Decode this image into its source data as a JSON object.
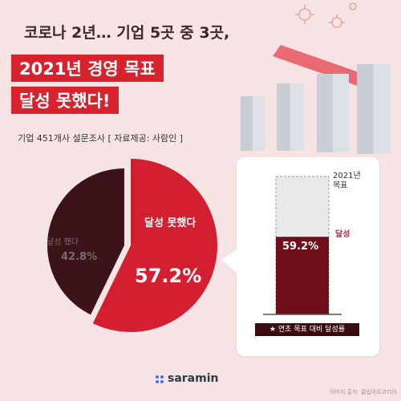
{
  "headline": {
    "line1": "코로나 2년… 기업 5곳 중 3곳,",
    "line2": "2021년 경영 목표",
    "line3": "달성 못했다!"
  },
  "survey_note": "기업 451개사 설문조사 [ 자료제공: 사람인 ]",
  "chart_data": [
    {
      "type": "pie",
      "labels": [
        "달성 못했다",
        "달성 했다"
      ],
      "values": [
        57.2,
        42.8
      ],
      "value_labels": [
        "57.2%",
        "42.8%"
      ],
      "colors": [
        "#d41f31",
        "#3a1418"
      ]
    },
    {
      "type": "bar",
      "categories": [
        "달성"
      ],
      "values": [
        59.2
      ],
      "value_label": "59.2%",
      "target_label": "2021년 목표",
      "ylim": [
        0,
        100
      ],
      "xlabel": "연초 목표 대비 달성률",
      "colors": {
        "achieved": "#6e0f1a",
        "target": "#e9e9e9"
      }
    }
  ],
  "logo_text": "saramin",
  "source_note": "이미지 출처: 클립아트코리아",
  "colors": {
    "brand_red": "#d8232f",
    "background": "#f6e4e4"
  },
  "decor_icons": [
    "building-icon",
    "downward-arrow-icon",
    "virus-icon"
  ]
}
